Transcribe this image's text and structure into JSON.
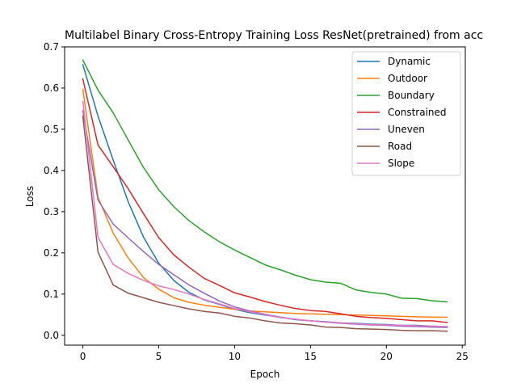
{
  "chart_data": {
    "type": "line",
    "title": "Multilabel Binary Cross-Entropy Training Loss ResNet(pretrained) from acc",
    "xlabel": "Epoch",
    "ylabel": "Loss",
    "xlim": [
      -1.2,
      25.2
    ],
    "ylim": [
      -0.024,
      0.7
    ],
    "xticks": [
      0,
      5,
      10,
      15,
      20,
      25
    ],
    "yticks": [
      0.0,
      0.1,
      0.2,
      0.3,
      0.4,
      0.5,
      0.6,
      0.7
    ],
    "xtick_labels": [
      "0",
      "5",
      "10",
      "15",
      "20",
      "25"
    ],
    "ytick_labels": [
      "0.0",
      "0.1",
      "0.2",
      "0.3",
      "0.4",
      "0.5",
      "0.6",
      "0.7"
    ],
    "grid": false,
    "legend_position": "upper-right",
    "x": [
      0,
      1,
      2,
      3,
      4,
      5,
      6,
      7,
      8,
      9,
      10,
      11,
      12,
      13,
      14,
      15,
      16,
      17,
      18,
      19,
      20,
      21,
      22,
      23,
      24
    ],
    "series": [
      {
        "name": "Dynamic",
        "color": "#1f77b4",
        "values": [
          0.657,
          0.532,
          0.425,
          0.323,
          0.238,
          0.175,
          0.133,
          0.104,
          0.086,
          0.075,
          0.063,
          0.055,
          0.049,
          0.044,
          0.038,
          0.035,
          0.033,
          0.03,
          0.029,
          0.027,
          0.026,
          0.024,
          0.024,
          0.022,
          0.021
        ]
      },
      {
        "name": "Outdoor",
        "color": "#ff7f0e",
        "values": [
          0.597,
          0.335,
          0.248,
          0.187,
          0.14,
          0.112,
          0.091,
          0.08,
          0.073,
          0.068,
          0.063,
          0.059,
          0.057,
          0.055,
          0.053,
          0.052,
          0.051,
          0.05,
          0.049,
          0.048,
          0.047,
          0.046,
          0.045,
          0.044,
          0.044
        ]
      },
      {
        "name": "Boundary",
        "color": "#2ca02c",
        "values": [
          0.668,
          0.595,
          0.54,
          0.473,
          0.407,
          0.353,
          0.312,
          0.278,
          0.251,
          0.227,
          0.207,
          0.189,
          0.171,
          0.159,
          0.146,
          0.135,
          0.129,
          0.126,
          0.11,
          0.104,
          0.1,
          0.09,
          0.089,
          0.084,
          0.081
        ]
      },
      {
        "name": "Constrained",
        "color": "#d62728",
        "values": [
          0.622,
          0.462,
          0.409,
          0.355,
          0.295,
          0.237,
          0.195,
          0.165,
          0.138,
          0.121,
          0.103,
          0.093,
          0.082,
          0.073,
          0.065,
          0.06,
          0.058,
          0.052,
          0.046,
          0.043,
          0.041,
          0.038,
          0.035,
          0.035,
          0.031
        ]
      },
      {
        "name": "Uneven",
        "color": "#9467bd",
        "values": [
          0.545,
          0.328,
          0.27,
          0.236,
          0.203,
          0.172,
          0.147,
          0.122,
          0.102,
          0.083,
          0.069,
          0.059,
          0.051,
          0.044,
          0.039,
          0.035,
          0.032,
          0.029,
          0.027,
          0.025,
          0.024,
          0.022,
          0.021,
          0.02,
          0.019
        ]
      },
      {
        "name": "Road",
        "color": "#8c564b",
        "values": [
          0.532,
          0.202,
          0.122,
          0.102,
          0.091,
          0.08,
          0.072,
          0.064,
          0.058,
          0.054,
          0.046,
          0.042,
          0.035,
          0.03,
          0.028,
          0.025,
          0.02,
          0.019,
          0.016,
          0.015,
          0.014,
          0.012,
          0.011,
          0.011,
          0.01
        ]
      },
      {
        "name": "Slope",
        "color": "#e377c2",
        "values": [
          0.568,
          0.238,
          0.172,
          0.15,
          0.133,
          0.12,
          0.111,
          0.1,
          0.087,
          0.076,
          0.065,
          0.057,
          0.05,
          0.043,
          0.039,
          0.035,
          0.032,
          0.03,
          0.028,
          0.026,
          0.025,
          0.024,
          0.023,
          0.022,
          0.021
        ]
      }
    ]
  }
}
